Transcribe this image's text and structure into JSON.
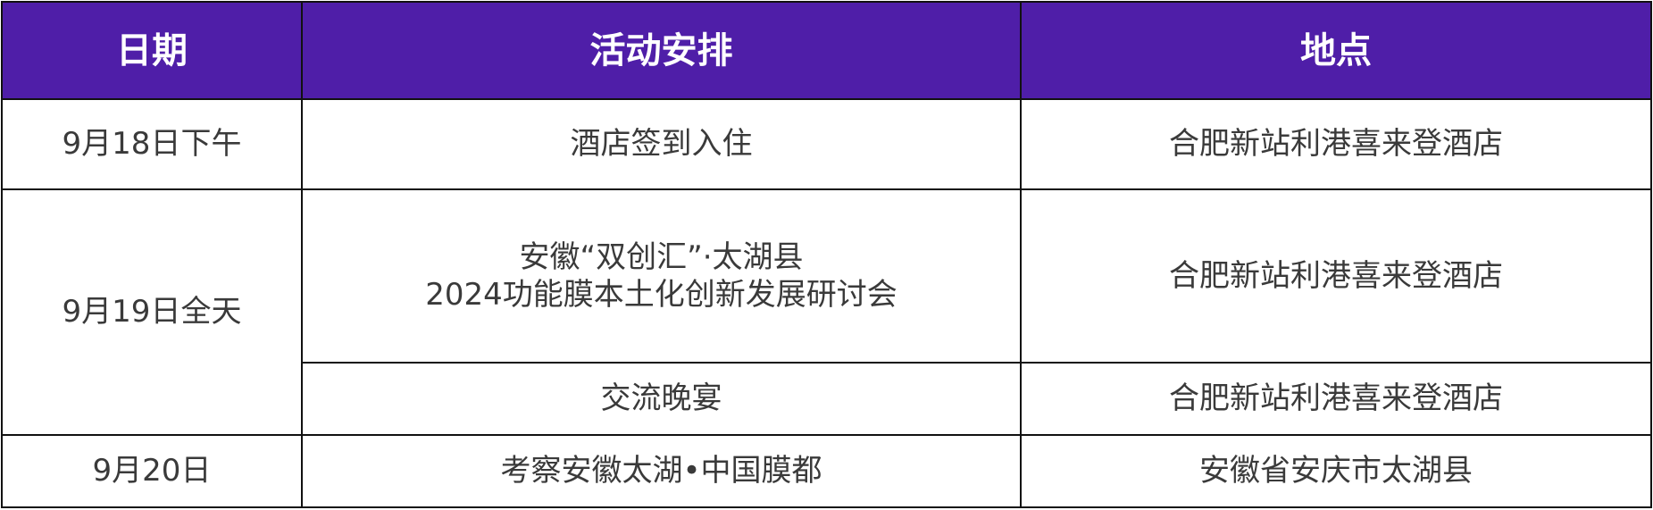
{
  "colors": {
    "header_bg": "#4f1ea8",
    "header_text": "#ffffff",
    "body_text": "#3a3a3a"
  },
  "headers": [
    "日期",
    "活动安排",
    "地点"
  ],
  "rows": [
    {
      "date": "9月18日下午",
      "activity": "酒店签到入住",
      "location": "合肥新站利港喜来登酒店"
    },
    {
      "date": "9月19日全天",
      "activity_line1": "安徽“双创汇”·太湖县",
      "activity_line2": "2024功能膜本土化创新发展研讨会",
      "location": "合肥新站利港喜来登酒店"
    },
    {
      "activity": "交流晚宴",
      "location": "合肥新站利港喜来登酒店"
    },
    {
      "date": "9月20日",
      "activity": "考察安徽太湖•中国膜都",
      "location": "安徽省安庆市太湖县"
    }
  ]
}
